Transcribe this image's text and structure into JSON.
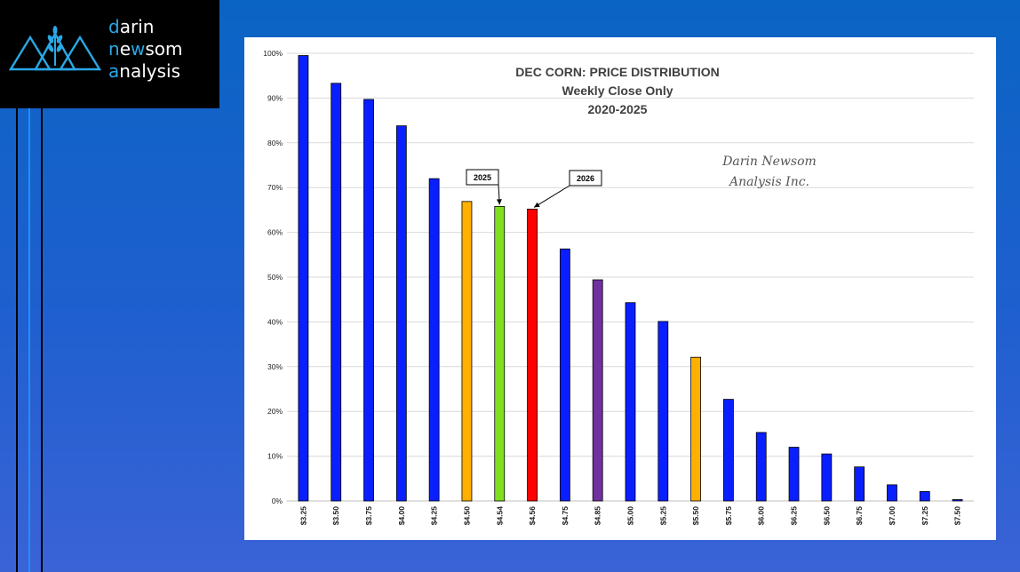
{
  "logo": {
    "line1_hl": "d",
    "line1_rest": "arin",
    "line2_hl": "n",
    "line2_mid1": "e",
    "line2_hl2": "w",
    "line2_rest": "som",
    "line3_hl": "a",
    "line3_rest": "nalysis"
  },
  "chart_data": {
    "type": "bar",
    "title": [
      "DEC CORN: PRICE DISTRIBUTION",
      "Weekly Close Only",
      "2020-2025"
    ],
    "watermark": [
      "Darin Newsom",
      "Analysis Inc."
    ],
    "xlabel": "",
    "ylabel": "",
    "ylim": [
      0,
      100
    ],
    "y_ticks": [
      "0%",
      "10%",
      "20%",
      "30%",
      "40%",
      "50%",
      "60%",
      "70%",
      "80%",
      "90%",
      "100%"
    ],
    "grid": true,
    "categories": [
      "$3.25",
      "$3.50",
      "$3.75",
      "$4.00",
      "$4.25",
      "$4.50",
      "$4.54",
      "$4.56",
      "$4.75",
      "$4.85",
      "$5.00",
      "$5.25",
      "$5.50",
      "$5.75",
      "$6.00",
      "$6.25",
      "$6.50",
      "$6.75",
      "$7.00",
      "$7.25",
      "$7.50"
    ],
    "values": [
      99.5,
      93.3,
      89.7,
      83.8,
      72.0,
      66.9,
      65.8,
      65.2,
      56.3,
      49.4,
      44.3,
      40.1,
      32.1,
      22.7,
      15.3,
      12.0,
      10.5,
      7.6,
      3.6,
      2.1,
      0.3
    ],
    "colors": [
      "#0a1fff",
      "#0a1fff",
      "#0a1fff",
      "#0a1fff",
      "#0a1fff",
      "#ffb000",
      "#80e020",
      "#ff0000",
      "#0a1fff",
      "#7030a0",
      "#0a1fff",
      "#0a1fff",
      "#ffb000",
      "#0a1fff",
      "#0a1fff",
      "#0a1fff",
      "#0a1fff",
      "#0a1fff",
      "#0a1fff",
      "#0a1fff",
      "#0a1fff"
    ],
    "annotations": [
      {
        "text": "2025",
        "category": "$4.54"
      },
      {
        "text": "2026",
        "category": "$4.56"
      }
    ]
  }
}
